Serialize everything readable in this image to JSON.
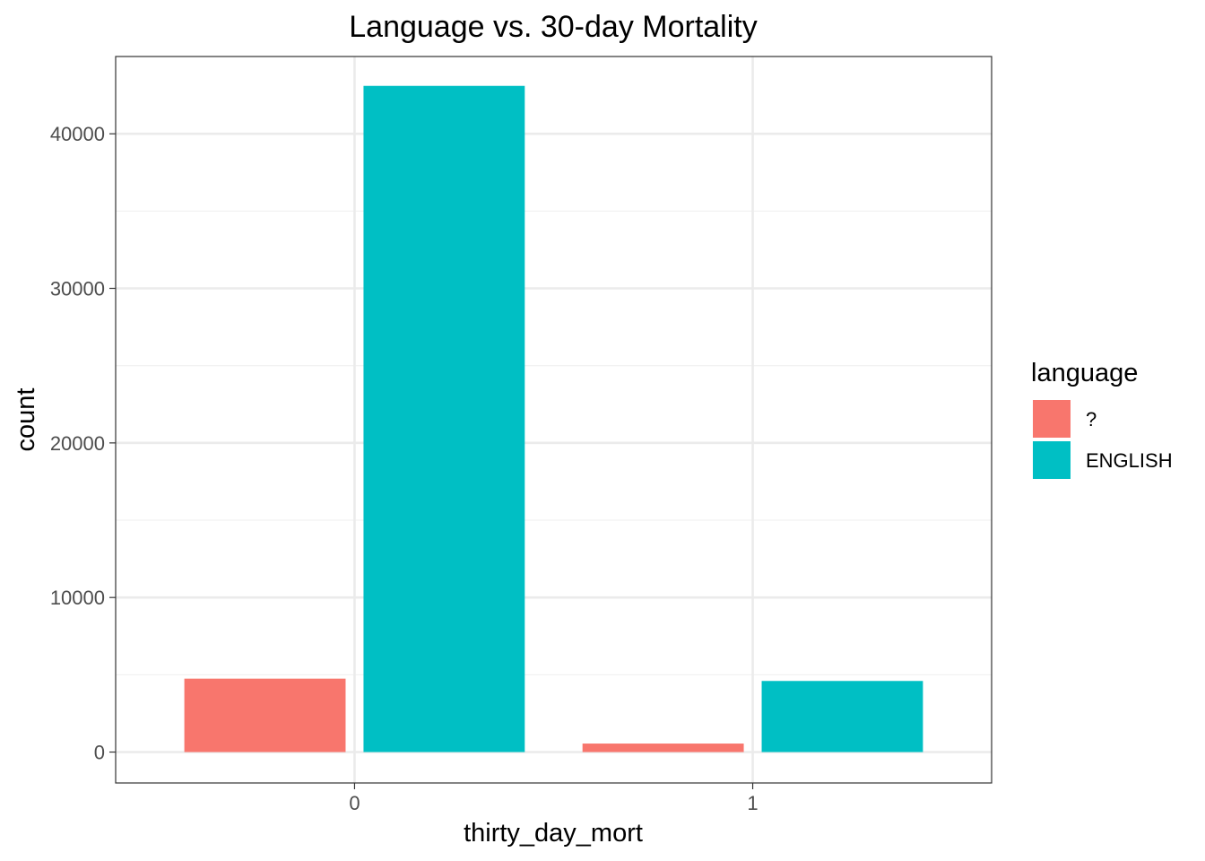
{
  "chart_data": {
    "type": "bar",
    "title": "Language vs. 30-day Mortality",
    "xlabel": "thirty_day_mort",
    "ylabel": "count",
    "categories": [
      "0",
      "1"
    ],
    "series": [
      {
        "name": "?",
        "values": [
          4750,
          550
        ]
      },
      {
        "name": "ENGLISH",
        "values": [
          43100,
          4600
        ]
      }
    ],
    "ylim": [
      -2000,
      45000
    ],
    "yticks": [
      0,
      10000,
      20000,
      30000,
      40000
    ],
    "grid": true,
    "legend": {
      "title": "language",
      "position": "right"
    }
  },
  "colors": {
    "?": "#F8766D",
    "ENGLISH": "#00BFC4",
    "grid_major": "#EBEBEB",
    "grid_minor": "#F2F2F2",
    "panel_border": "#333333"
  }
}
